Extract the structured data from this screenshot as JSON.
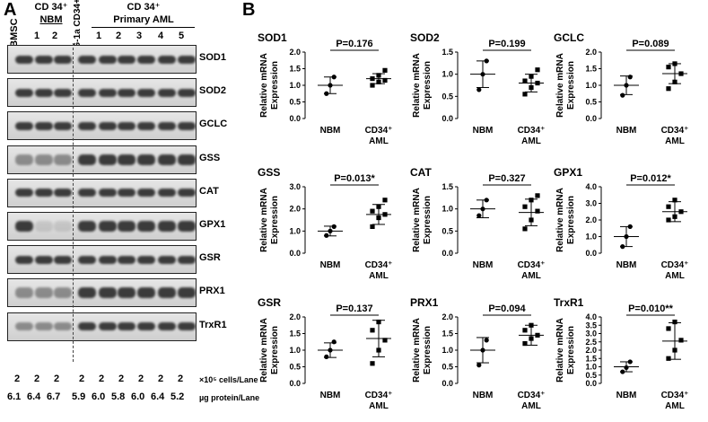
{
  "panel_a": {
    "letter": "A",
    "col_header_hbmsc": "hBMSC",
    "col_header_nbm": "CD 34⁺",
    "col_header_nbm2": "NBM",
    "col_header_kg1a": "KG-1a CD34+",
    "col_header_aml": "CD 34⁺",
    "col_header_aml2": "Primary AML",
    "lane_numbers": [
      "1",
      "2",
      "1",
      "2",
      "3",
      "4",
      "5"
    ],
    "blots": [
      "SOD1",
      "SOD2",
      "GCLC",
      "GSS",
      "CAT",
      "GPX1",
      "GSR",
      "PRX1",
      "TrxR1"
    ],
    "cells_values": [
      "2",
      "2",
      "2",
      "2",
      "2",
      "2",
      "2",
      "2",
      "2",
      "2"
    ],
    "cells_unit": "×10⁵ cells/Lane",
    "protein_values": [
      "6.1",
      "6.4",
      "6.7",
      "5.9",
      "6.0",
      "5.8",
      "6.0",
      "6.4",
      "5.2"
    ],
    "protein_unit": "µg protein/Lane"
  },
  "panel_b": {
    "letter": "B",
    "ylabel_line1": "Relative mRNA",
    "ylabel_line2": "Expression"
  },
  "chart_data": [
    {
      "type": "scatter",
      "title": "SOD1",
      "p_text": "P=0.176",
      "ylim": [
        0,
        2
      ],
      "yticks": [
        "0.0",
        "0.5",
        "1.0",
        "1.5",
        "2.0"
      ],
      "categories": [
        "NBM",
        "CD34⁺ AML"
      ],
      "series": [
        {
          "values": [
            [
              0.75,
              1.0,
              1.25
            ],
            [
              1.0,
              1.1,
              1.15,
              1.2,
              1.3,
              1.45
            ]
          ]
        }
      ],
      "mean": [
        1.0,
        1.2
      ],
      "sd": [
        0.25,
        0.15
      ]
    },
    {
      "type": "scatter",
      "title": "SOD2",
      "p_text": "P=0.199",
      "ylim": [
        0,
        1.5
      ],
      "yticks": [
        "0.0",
        "0.5",
        "1.0",
        "1.5"
      ],
      "categories": [
        "NBM",
        "CD34⁺ AML"
      ],
      "series": [
        {
          "values": [
            [
              0.65,
              1.0,
              1.3
            ],
            [
              0.55,
              0.7,
              0.8,
              0.85,
              0.95,
              1.1
            ]
          ]
        }
      ],
      "mean": [
        1.0,
        0.8
      ],
      "sd": [
        0.3,
        0.2
      ]
    },
    {
      "type": "scatter",
      "title": "GCLC",
      "p_text": "P=0.089",
      "ylim": [
        0,
        2
      ],
      "yticks": [
        "0.0",
        "0.5",
        "1.0",
        "1.5",
        "2.0"
      ],
      "categories": [
        "NBM",
        "CD34⁺ AML"
      ],
      "series": [
        {
          "values": [
            [
              0.7,
              1.0,
              1.25
            ],
            [
              0.9,
              1.1,
              1.35,
              1.55,
              1.65
            ]
          ]
        }
      ],
      "mean": [
        1.0,
        1.35
      ],
      "sd": [
        0.28,
        0.3
      ]
    },
    {
      "type": "scatter",
      "title": "GSS",
      "p_text": "P=0.013*",
      "ylim": [
        0,
        3
      ],
      "yticks": [
        "0.0",
        "1.0",
        "2.0",
        "3.0"
      ],
      "categories": [
        "NBM",
        "CD34⁺ AML"
      ],
      "series": [
        {
          "values": [
            [
              0.8,
              1.0,
              1.2
            ],
            [
              1.2,
              1.6,
              1.75,
              1.9,
              2.1,
              2.4
            ]
          ]
        }
      ],
      "mean": [
        1.0,
        1.75
      ],
      "sd": [
        0.22,
        0.45
      ]
    },
    {
      "type": "scatter",
      "title": "CAT",
      "p_text": "P=0.327",
      "ylim": [
        0,
        1.5
      ],
      "yticks": [
        "0.0",
        "0.5",
        "1.0",
        "1.5"
      ],
      "categories": [
        "NBM",
        "CD34⁺ AML"
      ],
      "series": [
        {
          "values": [
            [
              0.85,
              1.0,
              1.2
            ],
            [
              0.55,
              0.75,
              0.95,
              1.05,
              1.2,
              1.3
            ]
          ]
        }
      ],
      "mean": [
        1.0,
        0.92
      ],
      "sd": [
        0.2,
        0.3
      ]
    },
    {
      "type": "scatter",
      "title": "GPX1",
      "p_text": "P=0.012*",
      "ylim": [
        0,
        4
      ],
      "yticks": [
        "0.0",
        "1.0",
        "2.0",
        "3.0",
        "4.0"
      ],
      "categories": [
        "NBM",
        "CD34⁺ AML"
      ],
      "series": [
        {
          "values": [
            [
              0.4,
              1.0,
              1.6
            ],
            [
              2.0,
              2.2,
              2.5,
              2.8,
              3.2
            ]
          ]
        }
      ],
      "mean": [
        1.0,
        2.5
      ],
      "sd": [
        0.6,
        0.6
      ]
    },
    {
      "type": "scatter",
      "title": "GSR",
      "p_text": "P=0.137",
      "ylim": [
        0,
        2
      ],
      "yticks": [
        "0.0",
        "0.5",
        "1.0",
        "1.5",
        "2.0"
      ],
      "categories": [
        "NBM",
        "CD34⁺ AML"
      ],
      "series": [
        {
          "values": [
            [
              0.8,
              1.0,
              1.25
            ],
            [
              0.6,
              1.0,
              1.3,
              1.6,
              1.85
            ]
          ]
        }
      ],
      "mean": [
        1.0,
        1.35
      ],
      "sd": [
        0.22,
        0.55
      ]
    },
    {
      "type": "scatter",
      "title": "PRX1",
      "p_text": "P=0.094",
      "ylim": [
        0,
        2
      ],
      "yticks": [
        "0.0",
        "0.5",
        "1.0",
        "1.5",
        "2.0"
      ],
      "categories": [
        "NBM",
        "CD34⁺ AML"
      ],
      "series": [
        {
          "values": [
            [
              0.55,
              1.0,
              1.3
            ],
            [
              1.2,
              1.35,
              1.45,
              1.6,
              1.75
            ]
          ]
        }
      ],
      "mean": [
        1.0,
        1.45
      ],
      "sd": [
        0.38,
        0.3
      ]
    },
    {
      "type": "scatter",
      "title": "TrxR1",
      "p_text": "P=0.010**",
      "ylim": [
        0,
        4
      ],
      "yticks": [
        "0.0",
        "0.5",
        "1.0",
        "1.5",
        "2.0",
        "2.5",
        "3.0",
        "3.5",
        "4.0"
      ],
      "categories": [
        "NBM",
        "CD34⁺ AML"
      ],
      "series": [
        {
          "values": [
            [
              0.7,
              0.95,
              1.3
            ],
            [
              1.5,
              2.0,
              2.6,
              3.3,
              3.7
            ]
          ]
        }
      ],
      "mean": [
        1.0,
        2.55
      ],
      "sd": [
        0.3,
        1.1
      ]
    }
  ]
}
